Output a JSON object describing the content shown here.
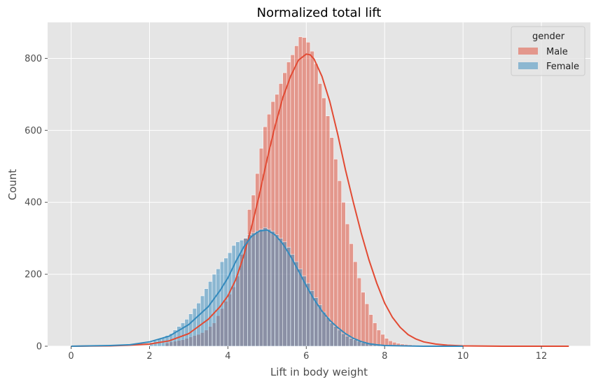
{
  "chart_data": {
    "type": "bar",
    "title": "Normalized total lift",
    "xlabel": "Lift in body weight",
    "ylabel": "Count",
    "xlim": [
      -0.6,
      13.25
    ],
    "ylim": [
      0,
      900
    ],
    "xticks": [
      0,
      2,
      4,
      6,
      8,
      10,
      12
    ],
    "yticks": [
      0,
      200,
      400,
      600,
      800
    ],
    "grid": true,
    "legend": {
      "title": "gender",
      "placement": "top-right"
    },
    "bin_width": 0.1,
    "series": [
      {
        "name": "Male",
        "color": "#E24A33",
        "bin_starts": [
          2.4,
          2.5,
          2.6,
          2.7,
          2.8,
          2.9,
          3.0,
          3.1,
          3.2,
          3.3,
          3.4,
          3.5,
          3.6,
          3.7,
          3.8,
          3.9,
          4.0,
          4.1,
          4.2,
          4.3,
          4.4,
          4.5,
          4.6,
          4.7,
          4.8,
          4.9,
          5.0,
          5.1,
          5.2,
          5.3,
          5.4,
          5.5,
          5.6,
          5.7,
          5.8,
          5.9,
          6.0,
          6.1,
          6.2,
          6.3,
          6.4,
          6.5,
          6.6,
          6.7,
          6.8,
          6.9,
          7.0,
          7.1,
          7.2,
          7.3,
          7.4,
          7.5,
          7.6,
          7.7,
          7.8,
          7.9,
          8.0,
          8.1,
          8.2,
          8.3,
          8.4,
          8.5,
          8.6,
          8.7,
          8.8,
          8.9,
          9.0,
          9.1
        ],
        "values": [
          9,
          12,
          14,
          16,
          18,
          22,
          26,
          30,
          33,
          38,
          45,
          55,
          65,
          85,
          105,
          125,
          145,
          165,
          195,
          255,
          300,
          380,
          420,
          480,
          550,
          610,
          645,
          680,
          700,
          730,
          760,
          790,
          810,
          835,
          860,
          858,
          845,
          820,
          785,
          730,
          690,
          640,
          580,
          520,
          460,
          400,
          340,
          285,
          235,
          190,
          150,
          118,
          88,
          65,
          45,
          33,
          22,
          15,
          11,
          8,
          6,
          5,
          4,
          3,
          2,
          2,
          1,
          1
        ],
        "kde_x": [
          0.0,
          1.0,
          1.5,
          2.0,
          2.5,
          3.0,
          3.5,
          3.8,
          4.0,
          4.2,
          4.4,
          4.6,
          4.8,
          5.0,
          5.2,
          5.4,
          5.6,
          5.8,
          6.0,
          6.1,
          6.2,
          6.4,
          6.6,
          6.8,
          7.0,
          7.2,
          7.4,
          7.6,
          7.8,
          8.0,
          8.2,
          8.4,
          8.6,
          8.8,
          9.0,
          9.3,
          9.6,
          10.0,
          11.0,
          12.7
        ],
        "kde_y": [
          0,
          1,
          3,
          6,
          15,
          35,
          75,
          110,
          140,
          185,
          250,
          330,
          420,
          520,
          610,
          690,
          750,
          795,
          812,
          810,
          798,
          750,
          680,
          590,
          490,
          400,
          315,
          240,
          175,
          120,
          80,
          52,
          32,
          20,
          12,
          6,
          3,
          1,
          0,
          0
        ]
      },
      {
        "name": "Female",
        "color": "#348ABD",
        "bin_starts": [
          2.0,
          2.1,
          2.2,
          2.3,
          2.4,
          2.5,
          2.6,
          2.7,
          2.8,
          2.9,
          3.0,
          3.1,
          3.2,
          3.3,
          3.4,
          3.5,
          3.6,
          3.7,
          3.8,
          3.9,
          4.0,
          4.1,
          4.2,
          4.3,
          4.4,
          4.5,
          4.6,
          4.7,
          4.8,
          4.9,
          5.0,
          5.1,
          5.2,
          5.3,
          5.4,
          5.5,
          5.6,
          5.7,
          5.8,
          5.9,
          6.0,
          6.1,
          6.2,
          6.3,
          6.4,
          6.5,
          6.6,
          6.7,
          6.8,
          6.9,
          7.0,
          7.1,
          7.2,
          7.3,
          7.4,
          7.5,
          7.6,
          7.7,
          7.8,
          7.9,
          8.0,
          8.1,
          8.2,
          8.3,
          8.4,
          8.5
        ],
        "values": [
          10,
          15,
          20,
          25,
          30,
          35,
          45,
          55,
          65,
          75,
          90,
          105,
          120,
          140,
          160,
          180,
          200,
          215,
          235,
          245,
          260,
          280,
          290,
          295,
          300,
          310,
          315,
          320,
          325,
          330,
          325,
          320,
          310,
          300,
          290,
          275,
          255,
          235,
          215,
          195,
          175,
          155,
          135,
          115,
          95,
          80,
          65,
          55,
          45,
          35,
          28,
          22,
          18,
          14,
          10,
          8,
          6,
          5,
          4,
          3,
          2,
          2,
          1,
          1,
          1,
          1
        ],
        "kde_x": [
          0.0,
          1.0,
          1.5,
          2.0,
          2.5,
          3.0,
          3.5,
          3.8,
          4.0,
          4.2,
          4.4,
          4.6,
          4.8,
          5.0,
          5.2,
          5.4,
          5.6,
          5.8,
          6.0,
          6.2,
          6.4,
          6.6,
          6.8,
          7.0,
          7.2,
          7.4,
          7.6,
          7.8,
          8.0,
          8.5,
          9.0,
          10.0
        ],
        "kde_y": [
          0,
          2,
          4,
          12,
          28,
          60,
          110,
          155,
          190,
          235,
          275,
          305,
          320,
          323,
          310,
          285,
          250,
          210,
          168,
          130,
          98,
          72,
          52,
          35,
          22,
          13,
          7,
          4,
          2,
          1,
          0,
          0
        ]
      }
    ]
  }
}
